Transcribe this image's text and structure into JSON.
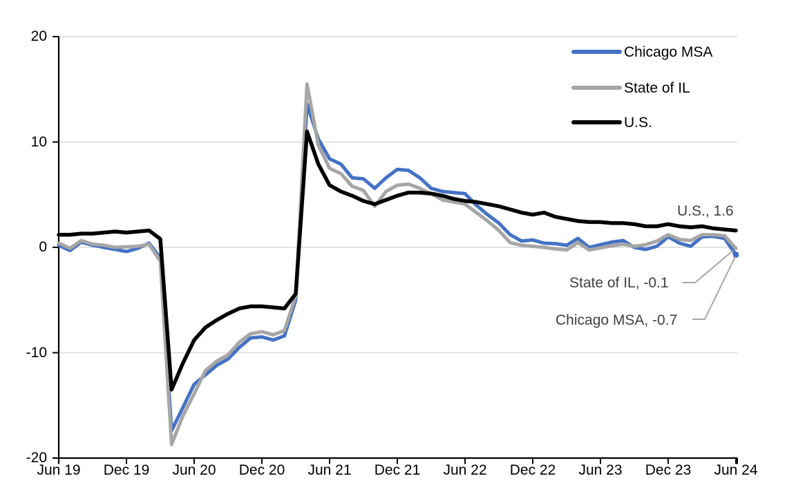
{
  "chart_data": {
    "type": "line",
    "title": "",
    "frequency": "monthly",
    "x_range": [
      "Jun 19",
      "Jun 24"
    ],
    "x_tick_labels": [
      "Jun 19",
      "Dec 19",
      "Jun 20",
      "Dec 20",
      "Jun 21",
      "Dec 21",
      "Jun 22",
      "Dec 22",
      "Jun 23",
      "Dec 23",
      "Jun 24"
    ],
    "y_tick_labels": [
      "20",
      "10",
      "0",
      "-10",
      "-20"
    ],
    "ylim": [
      -20,
      20
    ],
    "grid": true,
    "legend_position": "top-right-inside",
    "series": [
      {
        "name": "Chicago MSA",
        "color": "#4472C4",
        "end_value": -0.7,
        "values": [
          0.2,
          -0.3,
          0.5,
          0.2,
          0.0,
          -0.2,
          -0.4,
          -0.1,
          0.4,
          -1.0,
          -17.4,
          -15.2,
          -13.0,
          -12.1,
          -11.2,
          -10.6,
          -9.5,
          -8.6,
          -8.5,
          -8.8,
          -8.4,
          -5.0,
          13.6,
          10.3,
          8.4,
          7.9,
          6.6,
          6.5,
          5.6,
          6.6,
          7.4,
          7.3,
          6.6,
          5.6,
          5.3,
          5.2,
          5.1,
          4.0,
          3.1,
          2.3,
          1.2,
          0.6,
          0.7,
          0.4,
          0.35,
          0.2,
          0.85,
          0.0,
          0.25,
          0.5,
          0.65,
          0.0,
          -0.2,
          0.1,
          1.0,
          0.4,
          0.1,
          1.0,
          1.05,
          0.85,
          -0.7
        ]
      },
      {
        "name": "State of IL",
        "color": "#A6A6A6",
        "end_value": -0.1,
        "values": [
          0.4,
          -0.1,
          0.65,
          0.3,
          0.2,
          0.0,
          0.05,
          0.1,
          0.3,
          -1.3,
          -18.7,
          -16.0,
          -13.9,
          -11.7,
          -10.8,
          -10.2,
          -9.0,
          -8.2,
          -8.0,
          -8.3,
          -7.9,
          -4.6,
          15.5,
          9.7,
          7.5,
          7.0,
          5.8,
          5.4,
          3.9,
          5.3,
          5.9,
          6.0,
          5.6,
          5.1,
          4.5,
          4.3,
          4.1,
          3.3,
          2.5,
          1.6,
          0.45,
          0.2,
          0.1,
          0.0,
          -0.15,
          -0.25,
          0.45,
          -0.25,
          -0.05,
          0.15,
          0.3,
          0.1,
          0.25,
          0.6,
          1.2,
          0.75,
          0.65,
          1.2,
          1.2,
          1.1,
          -0.1
        ]
      },
      {
        "name": "U.S.",
        "color": "#000000",
        "end_value": 1.6,
        "values": [
          1.2,
          1.2,
          1.3,
          1.3,
          1.4,
          1.5,
          1.4,
          1.5,
          1.6,
          0.8,
          -13.5,
          -11.0,
          -8.8,
          -7.6,
          -6.9,
          -6.3,
          -5.8,
          -5.6,
          -5.6,
          -5.7,
          -5.8,
          -4.4,
          11.0,
          7.9,
          5.9,
          5.3,
          4.9,
          4.4,
          4.1,
          4.5,
          4.9,
          5.2,
          5.2,
          5.1,
          4.9,
          4.6,
          4.4,
          4.3,
          4.1,
          3.9,
          3.6,
          3.3,
          3.1,
          3.3,
          2.9,
          2.7,
          2.5,
          2.4,
          2.4,
          2.3,
          2.3,
          2.2,
          2.0,
          2.0,
          2.2,
          2.0,
          1.9,
          2.0,
          1.8,
          1.7,
          1.6
        ]
      }
    ],
    "annotations": [
      {
        "text": "U.S., 1.6"
      },
      {
        "text": "State of IL, -0.1"
      },
      {
        "text": "Chicago MSA, -0.7"
      }
    ]
  },
  "colors": {
    "gridline": "#D9D9D9",
    "axis": "#000000",
    "annotation_text": "#404040",
    "leader_line": "#A6A6A6"
  }
}
